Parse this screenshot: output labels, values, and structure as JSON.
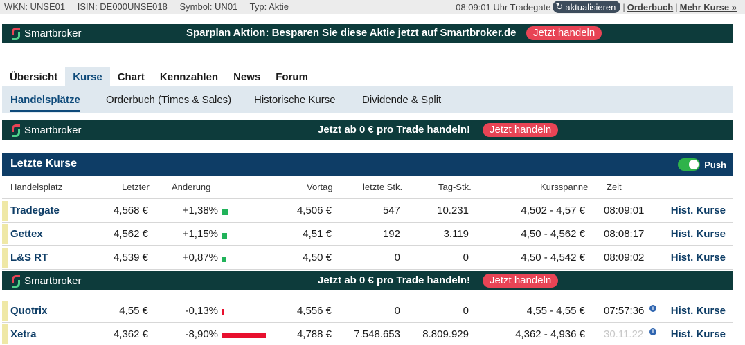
{
  "infobar": {
    "wkn": "WKN: UNSE01",
    "isin": "ISIN: DE000UNSE018",
    "symbol": "Symbol: UN01",
    "type": "Typ: Aktie",
    "time": "08:09:01 Uhr Tradegate",
    "refresh_label": "aktualisieren",
    "orderbuch_link": "Orderbuch",
    "separator": "|",
    "mehr_kurse_link": "Mehr Kurse »"
  },
  "banner_top": {
    "logo": "Smartbroker",
    "message": "Sparplan Aktion: Besparen Sie diese Aktie jetzt auf Smartbroker.de",
    "cta": "Jetzt handeln"
  },
  "tabs": [
    {
      "label": "Übersicht",
      "active": false
    },
    {
      "label": "Kurse",
      "active": true
    },
    {
      "label": "Chart",
      "active": false
    },
    {
      "label": "Kennzahlen",
      "active": false
    },
    {
      "label": "News",
      "active": false
    },
    {
      "label": "Forum",
      "active": false
    }
  ],
  "subtabs": [
    {
      "label": "Handelsplätze",
      "active": true
    },
    {
      "label": "Orderbuch (Times & Sales)",
      "active": false
    },
    {
      "label": "Historische Kurse",
      "active": false
    },
    {
      "label": "Dividende & Split",
      "active": false
    }
  ],
  "banner_mid": {
    "logo": "Smartbroker",
    "message": "Jetzt ab 0 € pro Trade handeln!",
    "cta": "Jetzt handeln"
  },
  "letzte_kurse": {
    "title": "Letzte Kurse",
    "push_label": "Push",
    "push_on": true,
    "columns": {
      "handelsplatz": "Handelsplatz",
      "letzter": "Letzter",
      "aenderung": "Änderung",
      "vortag": "Vortag",
      "letzte_stk": "letzte Stk.",
      "tag_stk": "Tag-Stk.",
      "kursspanne": "Kursspanne",
      "zeit": "Zeit"
    },
    "rows": [
      {
        "name": "Tradegate",
        "letzter": "4,568 €",
        "aenderung": "+1,38%",
        "change_pct": 1.38,
        "vortag": "4,506 €",
        "letzte_stk": "547",
        "tag_stk": "10.231",
        "kursspanne": "4,502 - 4,57 €",
        "zeit": "08:09:01",
        "hist": "Hist. Kurse"
      },
      {
        "name": "Gettex",
        "letzter": "4,562 €",
        "aenderung": "+1,15%",
        "change_pct": 1.15,
        "vortag": "4,51 €",
        "letzte_stk": "192",
        "tag_stk": "3.119",
        "kursspanne": "4,50 - 4,562 €",
        "zeit": "08:08:17",
        "hist": "Hist. Kurse"
      },
      {
        "name": "L&S RT",
        "letzter": "4,539 €",
        "aenderung": "+0,87%",
        "change_pct": 0.87,
        "vortag": "4,50 €",
        "letzte_stk": "0",
        "tag_stk": "0",
        "kursspanne": "4,50 - 4,542 €",
        "zeit": "08:09:02",
        "hist": "Hist. Kurse"
      }
    ],
    "rows_after_banner": [
      {
        "name": "Quotrix",
        "letzter": "4,55 €",
        "aenderung": "-0,13%",
        "change_pct": -0.13,
        "vortag": "4,556 €",
        "letzte_stk": "0",
        "tag_stk": "0",
        "kursspanne": "4,55 - 4,55 €",
        "zeit": "07:57:36",
        "hist": "Hist. Kurse",
        "info": "i"
      },
      {
        "name": "Xetra",
        "letzter": "4,362 €",
        "aenderung": "-8,90%",
        "change_pct": -8.9,
        "vortag": "4,788 €",
        "letzte_stk": "7.548.653",
        "tag_stk": "8.809.929",
        "kursspanne": "4,362 - 4,936 €",
        "zeit": "30.11.22",
        "hist": "Hist. Kurse",
        "info": "i"
      }
    ]
  },
  "banner_table": {
    "logo": "Smartbroker",
    "message": "Jetzt ab 0 € pro Trade handeln!",
    "cta": "Jetzt handeln"
  },
  "colors": {
    "positive": "#21b35a",
    "negative": "#e8102e",
    "stale_time": "#c8c8c8"
  }
}
